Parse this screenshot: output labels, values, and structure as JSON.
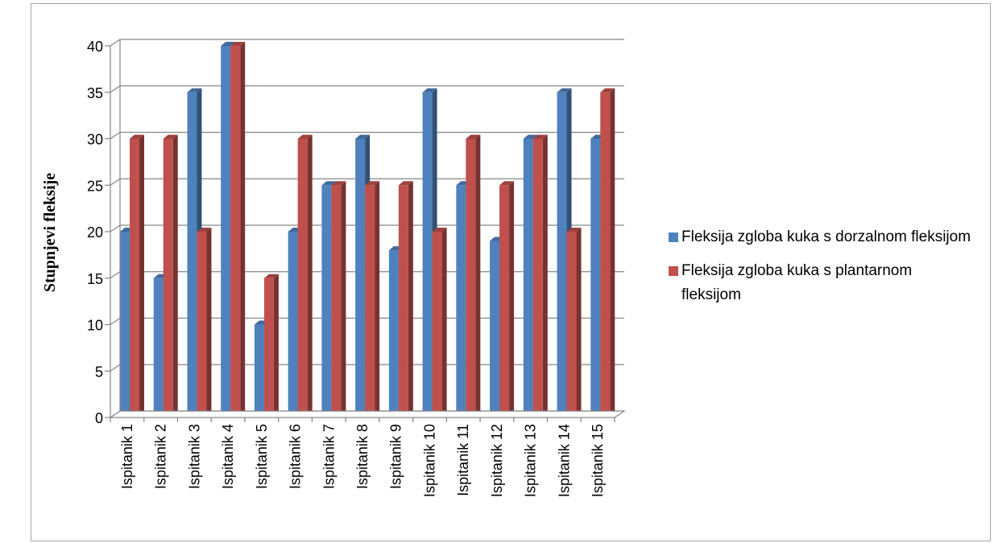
{
  "chart_data": {
    "type": "bar",
    "title": "",
    "xlabel": "",
    "ylabel": "Stupnjevi fleksije",
    "ylim": [
      0,
      40
    ],
    "yticks": [
      0,
      5,
      10,
      15,
      20,
      25,
      30,
      35,
      40
    ],
    "grid": true,
    "legend_position": "right",
    "categories": [
      "Ispitanik 1",
      "Ispitanik 2",
      "Ispitanik 3",
      "Ispitanik 4",
      "Ispitanik 5",
      "Ispitanik 6",
      "Ispitanik 7",
      "Ispitanik 8",
      "Ispitanik 9",
      "Ispitanik 10",
      "Ispitanik 11",
      "Ispitanik 12",
      "Ispitanik 13",
      "Ispitanik 14",
      "Ispitanik 15"
    ],
    "series": [
      {
        "name": "Fleksija zgloba kuka s dorzalnom fleksijom",
        "color": "#4f81bd",
        "values": [
          20,
          15,
          35,
          40,
          10,
          20,
          25,
          30,
          18,
          35,
          25,
          19,
          30,
          35,
          30
        ]
      },
      {
        "name": "Fleksija zgloba kuka s plantarnom fleksijom",
        "color": "#c0504d",
        "values": [
          30,
          30,
          20,
          40,
          15,
          30,
          25,
          25,
          25,
          20,
          30,
          25,
          30,
          20,
          35
        ]
      }
    ]
  }
}
